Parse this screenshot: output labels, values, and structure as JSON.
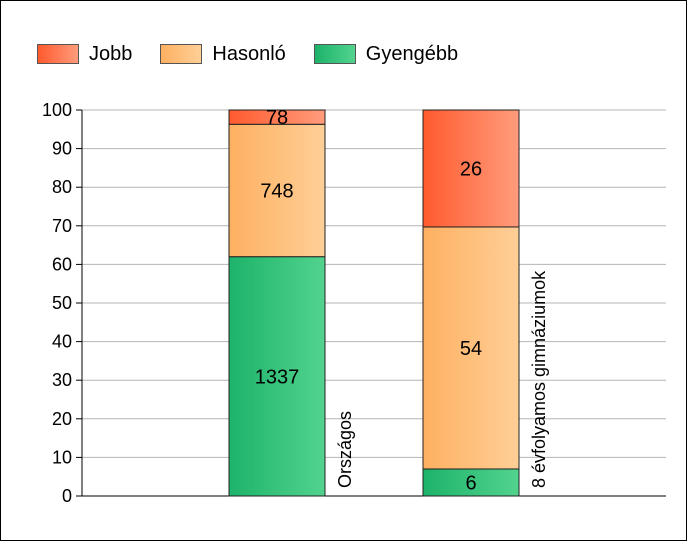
{
  "chart_data": {
    "type": "bar",
    "stacked": true,
    "categories": [
      "Országos",
      "8 évfolyamos gimnáziumok"
    ],
    "series": [
      {
        "name": "Gyengébb",
        "values": [
          62,
          7
        ],
        "labels": [
          "1337",
          "6"
        ],
        "color_from": "#1db36a",
        "color_to": "#52d38e"
      },
      {
        "name": "Hasonló",
        "values": [
          34.3,
          62.7
        ],
        "labels": [
          "748",
          "54"
        ],
        "color_from": "#fdb061",
        "color_to": "#ffcf97"
      },
      {
        "name": "Jobb",
        "values": [
          3.7,
          30.3
        ],
        "labels": [
          "78",
          "26"
        ],
        "color_from": "#ff5a2e",
        "color_to": "#ff9c7c"
      }
    ],
    "legend_order": [
      "Jobb",
      "Hasonló",
      "Gyengébb"
    ],
    "yticks": [
      "0",
      "10",
      "20",
      "30",
      "40",
      "50",
      "60",
      "70",
      "80",
      "90",
      "100"
    ],
    "ylim": [
      0,
      100
    ],
    "grid": true,
    "legend_position": "top-left"
  }
}
